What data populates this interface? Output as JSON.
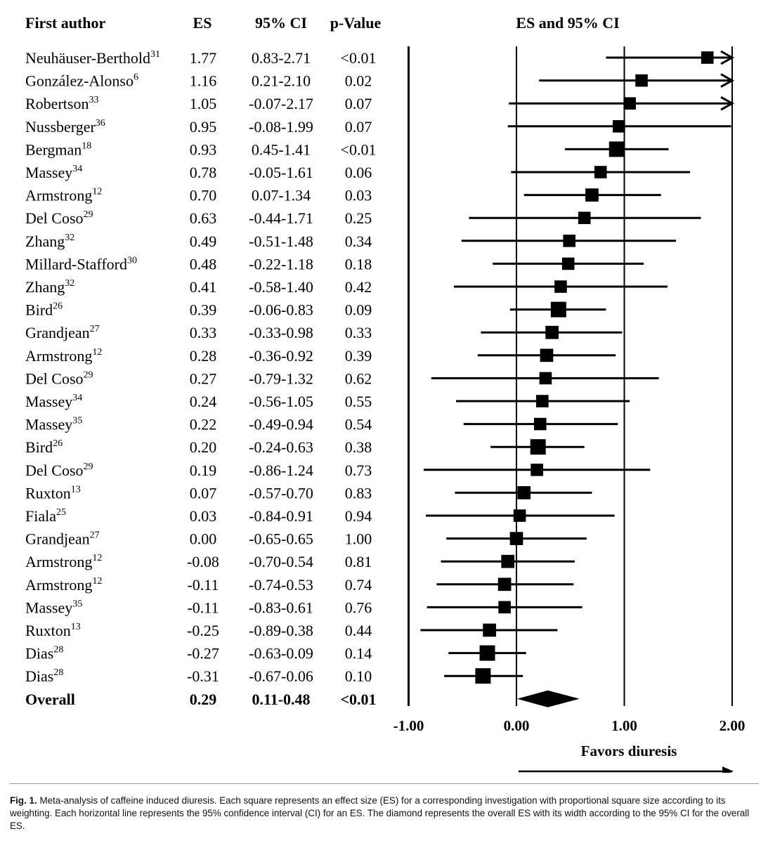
{
  "headers": {
    "author": "First author",
    "es": "ES",
    "ci": "95% CI",
    "p": "p-Value",
    "plot": "ES and 95% CI"
  },
  "chart_data": {
    "type": "forest",
    "title": "ES and 95% CI",
    "xlabel": "Favors diuresis",
    "xlim": [
      -1.0,
      2.0
    ],
    "ticks": [
      -1.0,
      0.0,
      1.0,
      2.0
    ],
    "tick_labels": [
      "-1.00",
      "0.00",
      "1.00",
      "2.00"
    ],
    "studies": [
      {
        "author": "Neuhäuser-Berthold",
        "ref": "31",
        "es": 1.77,
        "lo": 0.83,
        "hi": 2.71,
        "es_text": "1.77",
        "ci_text": "0.83-2.71",
        "p_text": "<0.01",
        "weight": 0.8
      },
      {
        "author": "González-Alonso",
        "ref": "6",
        "es": 1.16,
        "lo": 0.21,
        "hi": 2.1,
        "es_text": "1.16",
        "ci_text": "0.21-2.10",
        "p_text": "0.02",
        "weight": 0.8
      },
      {
        "author": "Robertson",
        "ref": "33",
        "es": 1.05,
        "lo": -0.07,
        "hi": 2.17,
        "es_text": "1.05",
        "ci_text": "-0.07-2.17",
        "p_text": "0.07",
        "weight": 0.8
      },
      {
        "author": "Nussberger",
        "ref": "36",
        "es": 0.95,
        "lo": -0.08,
        "hi": 1.99,
        "es_text": "0.95",
        "ci_text": "-0.08-1.99",
        "p_text": "0.07",
        "weight": 0.8
      },
      {
        "author": "Bergman",
        "ref": "18",
        "es": 0.93,
        "lo": 0.45,
        "hi": 1.41,
        "es_text": "0.93",
        "ci_text": "0.45-1.41",
        "p_text": "<0.01",
        "weight": 1.0
      },
      {
        "author": "Massey",
        "ref": "34",
        "es": 0.78,
        "lo": -0.05,
        "hi": 1.61,
        "es_text": "0.78",
        "ci_text": "-0.05-1.61",
        "p_text": "0.06",
        "weight": 0.8
      },
      {
        "author": "Armstrong",
        "ref": "12",
        "es": 0.7,
        "lo": 0.07,
        "hi": 1.34,
        "es_text": "0.70",
        "ci_text": "0.07-1.34",
        "p_text": "0.03",
        "weight": 0.85
      },
      {
        "author": "Del Coso",
        "ref": "29",
        "es": 0.63,
        "lo": -0.44,
        "hi": 1.71,
        "es_text": "0.63",
        "ci_text": "-0.44-1.71",
        "p_text": "0.25",
        "weight": 0.8
      },
      {
        "author": "Zhang",
        "ref": "32",
        "es": 0.49,
        "lo": -0.51,
        "hi": 1.48,
        "es_text": "0.49",
        "ci_text": "-0.51-1.48",
        "p_text": "0.34",
        "weight": 0.8
      },
      {
        "author": "Millard-Stafford",
        "ref": "30",
        "es": 0.48,
        "lo": -0.22,
        "hi": 1.18,
        "es_text": "0.48",
        "ci_text": "-0.22-1.18",
        "p_text": "0.18",
        "weight": 0.8
      },
      {
        "author": "Zhang",
        "ref": "32",
        "es": 0.41,
        "lo": -0.58,
        "hi": 1.4,
        "es_text": "0.41",
        "ci_text": "-0.58-1.40",
        "p_text": "0.42",
        "weight": 0.8
      },
      {
        "author": "Bird",
        "ref": "26",
        "es": 0.39,
        "lo": -0.06,
        "hi": 0.83,
        "es_text": "0.39",
        "ci_text": "-0.06-0.83",
        "p_text": "0.09",
        "weight": 1.0
      },
      {
        "author": "Grandjean",
        "ref": "27",
        "es": 0.33,
        "lo": -0.33,
        "hi": 0.98,
        "es_text": "0.33",
        "ci_text": "-0.33-0.98",
        "p_text": "0.33",
        "weight": 0.85
      },
      {
        "author": "Armstrong",
        "ref": "12",
        "es": 0.28,
        "lo": -0.36,
        "hi": 0.92,
        "es_text": "0.28",
        "ci_text": "-0.36-0.92",
        "p_text": "0.39",
        "weight": 0.85
      },
      {
        "author": "Del Coso",
        "ref": "29",
        "es": 0.27,
        "lo": -0.79,
        "hi": 1.32,
        "es_text": "0.27",
        "ci_text": "-0.79-1.32",
        "p_text": "0.62",
        "weight": 0.8
      },
      {
        "author": "Massey",
        "ref": "34",
        "es": 0.24,
        "lo": -0.56,
        "hi": 1.05,
        "es_text": "0.24",
        "ci_text": "-0.56-1.05",
        "p_text": "0.55",
        "weight": 0.8
      },
      {
        "author": "Massey",
        "ref": "35",
        "es": 0.22,
        "lo": -0.49,
        "hi": 0.94,
        "es_text": "0.22",
        "ci_text": "-0.49-0.94",
        "p_text": "0.54",
        "weight": 0.8
      },
      {
        "author": "Bird",
        "ref": "26",
        "es": 0.2,
        "lo": -0.24,
        "hi": 0.63,
        "es_text": "0.20",
        "ci_text": "-0.24-0.63",
        "p_text": "0.38",
        "weight": 1.0
      },
      {
        "author": "Del Coso",
        "ref": "29",
        "es": 0.19,
        "lo": -0.86,
        "hi": 1.24,
        "es_text": "0.19",
        "ci_text": "-0.86-1.24",
        "p_text": "0.73",
        "weight": 0.8
      },
      {
        "author": "Ruxton",
        "ref": "13",
        "es": 0.07,
        "lo": -0.57,
        "hi": 0.7,
        "es_text": "0.07",
        "ci_text": "-0.57-0.70",
        "p_text": "0.83",
        "weight": 0.85
      },
      {
        "author": "Fiala",
        "ref": "25",
        "es": 0.03,
        "lo": -0.84,
        "hi": 0.91,
        "es_text": "0.03",
        "ci_text": "-0.84-0.91",
        "p_text": "0.94",
        "weight": 0.8
      },
      {
        "author": "Grandjean",
        "ref": "27",
        "es": 0.0,
        "lo": -0.65,
        "hi": 0.65,
        "es_text": "0.00",
        "ci_text": "-0.65-0.65",
        "p_text": "1.00",
        "weight": 0.85
      },
      {
        "author": "Armstrong",
        "ref": "12",
        "es": -0.08,
        "lo": -0.7,
        "hi": 0.54,
        "es_text": "-0.08",
        "ci_text": "-0.70-0.54",
        "p_text": "0.81",
        "weight": 0.85
      },
      {
        "author": "Armstrong",
        "ref": "12",
        "es": -0.11,
        "lo": -0.74,
        "hi": 0.53,
        "es_text": "-0.11",
        "ci_text": "-0.74-0.53",
        "p_text": "0.74",
        "weight": 0.85
      },
      {
        "author": "Massey",
        "ref": "35",
        "es": -0.11,
        "lo": -0.83,
        "hi": 0.61,
        "es_text": "-0.11",
        "ci_text": "-0.83-0.61",
        "p_text": "0.76",
        "weight": 0.8
      },
      {
        "author": "Ruxton",
        "ref": "13",
        "es": -0.25,
        "lo": -0.89,
        "hi": 0.38,
        "es_text": "-0.25",
        "ci_text": "-0.89-0.38",
        "p_text": "0.44",
        "weight": 0.85
      },
      {
        "author": "Dias",
        "ref": "28",
        "es": -0.27,
        "lo": -0.63,
        "hi": 0.09,
        "es_text": "-0.27",
        "ci_text": "-0.63-0.09",
        "p_text": "0.14",
        "weight": 1.0
      },
      {
        "author": "Dias",
        "ref": "28",
        "es": -0.31,
        "lo": -0.67,
        "hi": 0.06,
        "es_text": "-0.31",
        "ci_text": "-0.67-0.06",
        "p_text": "0.10",
        "weight": 1.0
      }
    ],
    "overall": {
      "author": "Overall",
      "es": 0.29,
      "lo": 0.11,
      "hi": 0.48,
      "es_text": "0.29",
      "ci_text": "0.11-0.48",
      "p_text": "<0.01"
    }
  },
  "caption": {
    "label": "Fig. 1.",
    "text": "Meta-analysis of caffeine induced diuresis. Each square represents an effect size (ES) for a corresponding investigation with proportional square size according to its weighting. Each horizontal line represents the 95% confidence interval (CI) for an ES. The diamond represents the overall ES with its width according to the 95% CI for the overall ES."
  },
  "colors": {
    "ink": "#000000"
  }
}
